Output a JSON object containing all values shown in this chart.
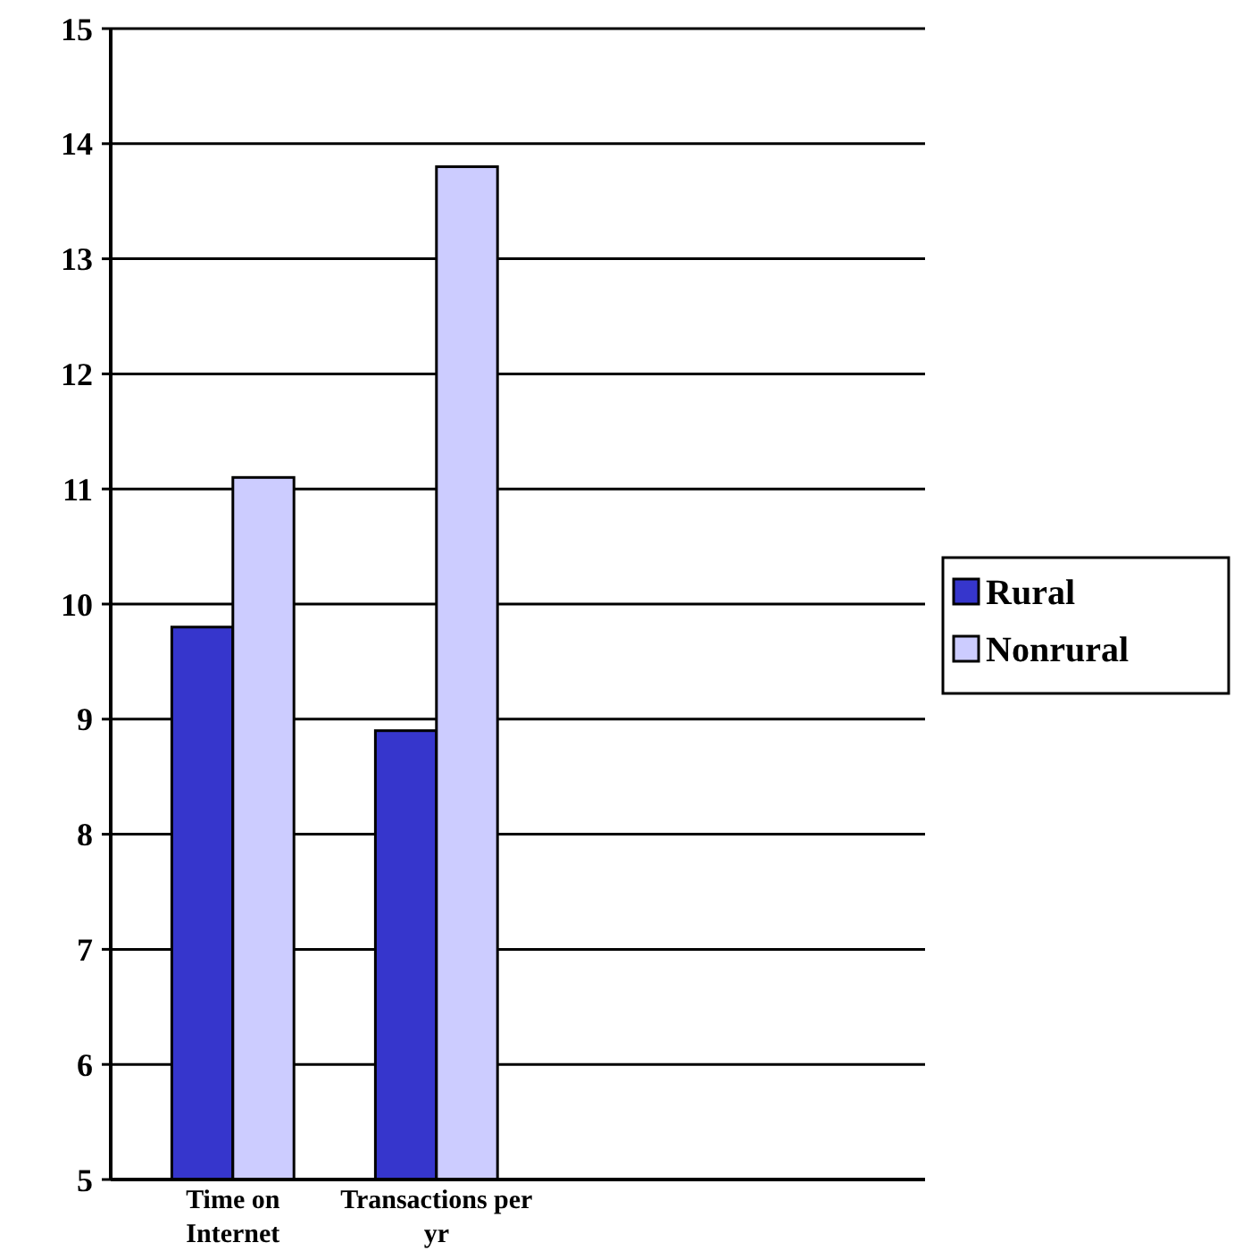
{
  "chart_data": {
    "type": "bar",
    "categories": [
      "Time on Internet",
      "Transactions per yr"
    ],
    "series": [
      {
        "name": "Rural",
        "color": "#3636cc",
        "values": [
          9.8,
          8.9
        ]
      },
      {
        "name": "Nonrural",
        "color": "#ccccff",
        "values": [
          11.1,
          13.8
        ]
      }
    ],
    "ylim": [
      5,
      15
    ],
    "yticks": [
      5,
      6,
      7,
      8,
      9,
      10,
      11,
      12,
      13,
      14,
      15
    ],
    "grid": "y",
    "legend": "right"
  }
}
